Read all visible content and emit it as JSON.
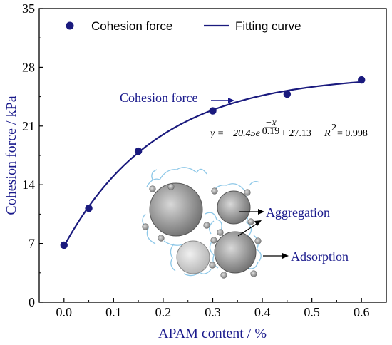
{
  "colors": {
    "series": "#1a1a7e",
    "axis_title": "#1a1a8c",
    "annotation": "#1a1a8c",
    "particle_dark": "#8a8a8a",
    "particle_light": "#cfcfcf",
    "small_particle": "#9a9a9a",
    "polymer_chain": "#8ec8e8"
  },
  "chart_data": {
    "type": "scatter",
    "x": [
      0.0,
      0.05,
      0.15,
      0.3,
      0.45,
      0.6
    ],
    "y": [
      6.8,
      11.2,
      18.0,
      22.8,
      24.8,
      26.5
    ],
    "series": [
      {
        "name": "Cohesion force",
        "x": [
          0.0,
          0.05,
          0.15,
          0.3,
          0.45,
          0.6
        ],
        "y": [
          6.8,
          11.2,
          18.0,
          22.8,
          24.8,
          26.5
        ]
      },
      {
        "name": "Fitting curve",
        "a": -20.45,
        "t": 0.19,
        "c": 27.13
      }
    ],
    "xlabel": "APAM content / %",
    "ylabel": "Cohesion force / kPa",
    "xlim": [
      -0.05,
      0.65
    ],
    "ylim": [
      0,
      35
    ],
    "xticks": [
      0.0,
      0.1,
      0.2,
      0.3,
      0.4,
      0.5,
      0.6
    ],
    "xtick_labels": [
      "0.0",
      "0.1",
      "0.2",
      "0.3",
      "0.4",
      "0.5",
      "0.6"
    ],
    "yticks": [
      0,
      7,
      14,
      21,
      28,
      35
    ],
    "ytick_labels": [
      "0",
      "7",
      "14",
      "21",
      "28",
      "35"
    ],
    "legend_position": "top",
    "grid": false,
    "annotations": {
      "cohesion": "Cohesion force",
      "aggregation": "Aggregation",
      "adsorption": "Adsorption"
    },
    "equation": {
      "lhs": "y = −20.45e",
      "exp_num": "−x",
      "exp_den": "0.19",
      "rest": "+ 27.13",
      "r2_label": "R",
      "r2_exp": "2",
      "r2_value": "= 0.998"
    }
  }
}
